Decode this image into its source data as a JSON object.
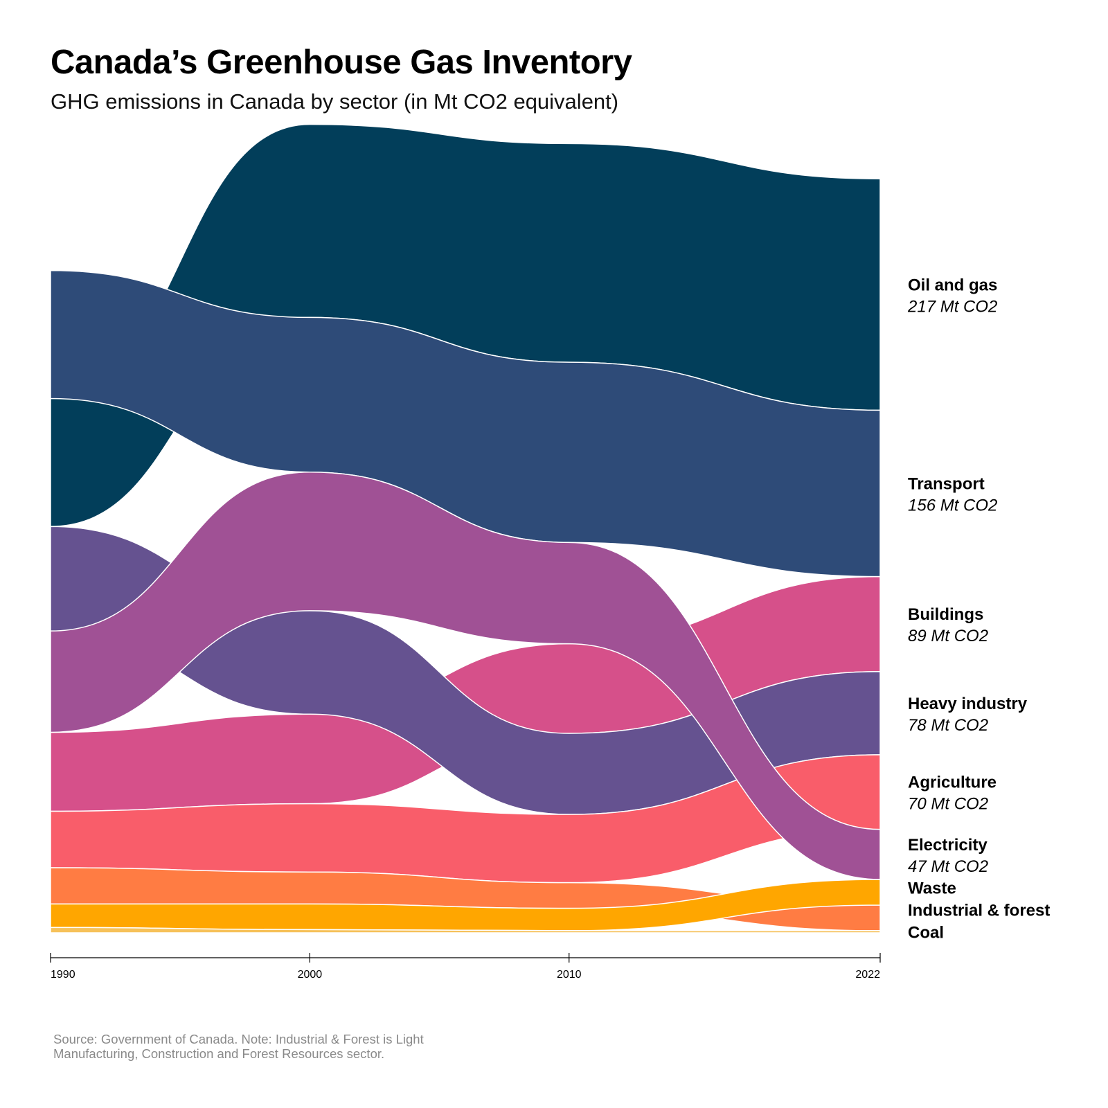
{
  "title": "Canada’s Greenhouse Gas Inventory",
  "subtitle": "GHG emissions in Canada by sector (in Mt CO2 equivalent)",
  "source": "Source: Government of Canada. Note: Industrial & Forest is Light Manufacturing, Construction and Forest Resources sector.",
  "chart_data": {
    "type": "area",
    "subtype": "ranked stacked streamgraph (bands reorder by size each year)",
    "unit": "Mt CO2 equivalent",
    "x": [
      1990,
      2000,
      2010,
      2022
    ],
    "x_ticks": [
      "1990",
      "2000",
      "2010",
      "2022"
    ],
    "legend_placement": "direct labels right of 2022 values",
    "grid": false,
    "series": [
      {
        "key": "oil_gas",
        "name": "Oil and gas",
        "value_label": "217 Mt CO2",
        "color": "#023e5a",
        "values": [
          120,
          181,
          205,
          217
        ]
      },
      {
        "key": "transport",
        "name": "Transport",
        "value_label": "156 Mt CO2",
        "color": "#2e4b78",
        "values": [
          120,
          145,
          169,
          156
        ]
      },
      {
        "key": "buildings",
        "name": "Buildings",
        "value_label": "89 Mt CO2",
        "color": "#d6508a",
        "values": [
          74,
          84,
          84,
          89
        ]
      },
      {
        "key": "heavy_industry",
        "name": "Heavy industry",
        "value_label": "78 Mt CO2",
        "color": "#655290",
        "values": [
          98,
          97,
          76,
          78
        ]
      },
      {
        "key": "agriculture",
        "name": "Agriculture",
        "value_label": "70 Mt CO2",
        "color": "#f95d6a",
        "values": [
          53,
          64,
          64,
          70
        ]
      },
      {
        "key": "electricity",
        "name": "Electricity",
        "value_label": "47 Mt CO2",
        "color": "#a05195",
        "values": [
          95,
          130,
          95,
          47
        ]
      },
      {
        "key": "industrial_forest",
        "name": "Industrial & forest",
        "value_label": "",
        "color": "#ff7c43",
        "values": [
          34,
          30,
          24,
          24
        ]
      },
      {
        "key": "waste",
        "name": "Waste",
        "value_label": "",
        "color": "#ffa600",
        "values": [
          22,
          24,
          21,
          24
        ]
      },
      {
        "key": "coal",
        "name": "Coal",
        "value_label": "",
        "color": "#f6c15a",
        "values": [
          5,
          3,
          2,
          2
        ]
      }
    ]
  }
}
